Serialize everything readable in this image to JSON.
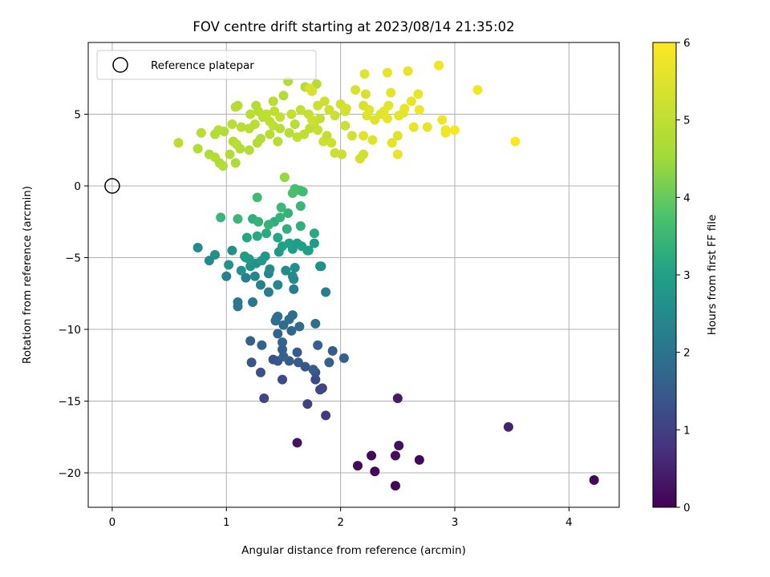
{
  "chart_data": {
    "type": "scatter",
    "title": "FOV centre drift starting at 2023/08/14 21:35:02",
    "xlabel": "Angular distance from reference (arcmin)",
    "ylabel": "Rotation from reference (arcmin)",
    "xlim": [
      -0.21,
      4.44
    ],
    "ylim": [
      -22.4,
      10.0
    ],
    "x_ticks": [
      0,
      1,
      2,
      3,
      4
    ],
    "y_ticks": [
      -20,
      -15,
      -10,
      -5,
      0,
      5
    ],
    "x_tick_labels": [
      "0",
      "1",
      "2",
      "3",
      "4"
    ],
    "y_tick_labels": [
      "−20",
      "−15",
      "−10",
      "−5",
      "0",
      "5"
    ],
    "grid": true,
    "colormap": "viridis",
    "colorbar": {
      "label": "Hours from first FF file",
      "range": [
        0,
        6
      ],
      "ticks": [
        0,
        1,
        2,
        3,
        4,
        5,
        6
      ],
      "tick_labels": [
        "0",
        "1",
        "2",
        "3",
        "4",
        "5",
        "6"
      ]
    },
    "legend": {
      "placement": "top-left",
      "entries": [
        {
          "label": "Reference platepar",
          "marker": "hollow-circle"
        }
      ]
    },
    "reference_point": {
      "x": 0,
      "y": 0
    },
    "series": [
      {
        "marker": "filled-circle",
        "points": [
          [
            2.48,
            -20.9,
            0.05
          ],
          [
            2.3,
            -19.9,
            0.08
          ],
          [
            2.15,
            -19.5,
            0.12
          ],
          [
            2.27,
            -18.8,
            0.15
          ],
          [
            2.48,
            -18.8,
            0.18
          ],
          [
            2.51,
            -18.1,
            0.2
          ],
          [
            2.69,
            -19.1,
            0.1
          ],
          [
            4.22,
            -20.5,
            0.1
          ],
          [
            3.47,
            -16.8,
            0.5
          ],
          [
            2.5,
            -14.8,
            0.4
          ],
          [
            1.62,
            -17.9,
            0.3
          ],
          [
            1.87,
            -16.0,
            0.9
          ],
          [
            1.71,
            -15.2,
            1.0
          ],
          [
            1.33,
            -14.8,
            1.1
          ],
          [
            1.49,
            -13.5,
            1.2
          ],
          [
            1.84,
            -14.1,
            1.0
          ],
          [
            1.82,
            -14.2,
            1.1
          ],
          [
            1.78,
            -13.5,
            1.2
          ],
          [
            1.78,
            -13.0,
            1.3
          ],
          [
            1.3,
            -13.0,
            1.3
          ],
          [
            1.22,
            -12.3,
            1.4
          ],
          [
            1.41,
            -12.1,
            1.3
          ],
          [
            1.45,
            -12.2,
            1.4
          ],
          [
            1.55,
            -12.2,
            1.5
          ],
          [
            1.63,
            -12.3,
            1.5
          ],
          [
            1.69,
            -12.6,
            1.4
          ],
          [
            1.76,
            -12.8,
            1.5
          ],
          [
            1.9,
            -12.3,
            1.6
          ],
          [
            1.93,
            -11.5,
            1.5
          ],
          [
            2.03,
            -12.0,
            1.6
          ],
          [
            1.8,
            -11.1,
            1.6
          ],
          [
            1.62,
            -11.6,
            1.5
          ],
          [
            1.5,
            -11.9,
            1.6
          ],
          [
            1.49,
            -11.4,
            1.6
          ],
          [
            1.49,
            -10.9,
            1.7
          ],
          [
            1.31,
            -11.1,
            1.7
          ],
          [
            1.21,
            -10.8,
            1.6
          ],
          [
            1.45,
            -10.3,
            1.7
          ],
          [
            1.57,
            -10.1,
            1.7
          ],
          [
            1.64,
            -9.8,
            1.8
          ],
          [
            1.5,
            -9.7,
            1.8
          ],
          [
            1.43,
            -9.4,
            1.8
          ],
          [
            1.55,
            -9.3,
            1.9
          ],
          [
            1.45,
            -9.1,
            1.9
          ],
          [
            1.44,
            -9.2,
            1.9
          ],
          [
            1.58,
            -9.0,
            1.9
          ],
          [
            1.78,
            -9.6,
            1.9
          ],
          [
            1.1,
            -8.4,
            2.1
          ],
          [
            1.1,
            -8.1,
            2.1
          ],
          [
            1.23,
            -8.1,
            2.1
          ],
          [
            1.37,
            -7.4,
            2.2
          ],
          [
            1.59,
            -7.2,
            2.2
          ],
          [
            1.87,
            -7.4,
            2.2
          ],
          [
            1.45,
            -6.9,
            2.4
          ],
          [
            1.3,
            -6.9,
            2.3
          ],
          [
            1.0,
            -6.3,
            2.3
          ],
          [
            1.17,
            -6.4,
            2.3
          ],
          [
            1.25,
            -6.3,
            2.4
          ],
          [
            1.37,
            -6.1,
            2.4
          ],
          [
            1.38,
            -5.8,
            2.5
          ],
          [
            1.52,
            -5.9,
            2.5
          ],
          [
            1.59,
            -6.5,
            2.5
          ],
          [
            1.58,
            -6.3,
            2.5
          ],
          [
            1.6,
            -5.7,
            2.6
          ],
          [
            1.82,
            -5.6,
            2.6
          ],
          [
            1.83,
            -5.6,
            2.6
          ],
          [
            1.02,
            -5.5,
            2.7
          ],
          [
            1.13,
            -5.9,
            2.7
          ],
          [
            1.21,
            -5.6,
            2.7
          ],
          [
            1.26,
            -5.4,
            2.7
          ],
          [
            1.2,
            -5.1,
            2.8
          ],
          [
            1.31,
            -5.2,
            2.8
          ],
          [
            1.34,
            -4.9,
            2.8
          ],
          [
            1.46,
            -4.6,
            2.8
          ],
          [
            1.58,
            -4.4,
            2.9
          ],
          [
            1.71,
            -4.5,
            2.9
          ],
          [
            1.62,
            -4.0,
            2.9
          ],
          [
            1.77,
            -4.0,
            2.9
          ],
          [
            1.49,
            -4.2,
            3.0
          ],
          [
            1.55,
            -4.0,
            3.0
          ],
          [
            1.66,
            -4.2,
            3.0
          ],
          [
            1.72,
            -4.5,
            3.0
          ],
          [
            1.16,
            -4.9,
            2.9
          ],
          [
            1.17,
            -5.0,
            2.9
          ],
          [
            0.75,
            -4.3,
            2.5
          ],
          [
            0.85,
            -5.2,
            2.5
          ],
          [
            0.9,
            -4.8,
            2.6
          ],
          [
            1.05,
            -4.5,
            2.6
          ],
          [
            1.18,
            -3.6,
            3.1
          ],
          [
            1.27,
            -3.5,
            3.2
          ],
          [
            1.35,
            -3.3,
            3.2
          ],
          [
            1.45,
            -3.6,
            3.1
          ],
          [
            1.53,
            -3.0,
            3.3
          ],
          [
            1.65,
            -2.8,
            3.3
          ],
          [
            1.77,
            -3.3,
            3.2
          ],
          [
            1.42,
            -2.5,
            3.3
          ],
          [
            1.47,
            -2.2,
            3.4
          ],
          [
            1.54,
            -1.9,
            3.4
          ],
          [
            1.48,
            -1.5,
            3.5
          ],
          [
            1.65,
            -1.4,
            3.5
          ],
          [
            1.23,
            -2.3,
            3.3
          ],
          [
            1.28,
            -2.5,
            3.4
          ],
          [
            1.37,
            -2.7,
            3.4
          ],
          [
            0.95,
            -2.2,
            3.5
          ],
          [
            1.1,
            -2.3,
            3.5
          ],
          [
            1.27,
            -0.8,
            3.6
          ],
          [
            1.58,
            -0.5,
            3.7
          ],
          [
            1.6,
            -0.2,
            3.7
          ],
          [
            1.64,
            -0.3,
            3.7
          ],
          [
            1.67,
            -0.4,
            3.6
          ],
          [
            1.51,
            0.6,
            4.4
          ],
          [
            0.58,
            3.0,
            4.9
          ],
          [
            0.78,
            3.7,
            4.9
          ],
          [
            0.93,
            3.9,
            4.9
          ],
          [
            0.75,
            2.6,
            4.8
          ],
          [
            0.85,
            2.2,
            4.7
          ],
          [
            0.9,
            2.0,
            4.8
          ],
          [
            0.94,
            1.6,
            4.7
          ],
          [
            0.97,
            1.4,
            4.8
          ],
          [
            1.03,
            2.2,
            4.8
          ],
          [
            1.08,
            1.6,
            4.7
          ],
          [
            0.9,
            3.6,
            4.8
          ],
          [
            0.98,
            3.8,
            4.8
          ],
          [
            1.06,
            3.1,
            4.8
          ],
          [
            1.09,
            2.9,
            4.9
          ],
          [
            1.12,
            2.6,
            4.8
          ],
          [
            1.2,
            2.5,
            4.8
          ],
          [
            1.27,
            3.0,
            4.8
          ],
          [
            1.3,
            3.3,
            4.8
          ],
          [
            1.38,
            3.6,
            4.9
          ],
          [
            1.45,
            3.1,
            4.9
          ],
          [
            1.05,
            4.3,
            4.9
          ],
          [
            1.13,
            4.1,
            4.9
          ],
          [
            1.2,
            4.0,
            4.9
          ],
          [
            1.25,
            4.3,
            4.9
          ],
          [
            1.21,
            5.0,
            4.9
          ],
          [
            1.28,
            5.2,
            4.9
          ],
          [
            1.32,
            4.8,
            4.9
          ],
          [
            1.38,
            4.5,
            5.0
          ],
          [
            1.41,
            4.2,
            5.0
          ],
          [
            1.08,
            5.5,
            4.8
          ],
          [
            1.1,
            5.6,
            4.8
          ],
          [
            1.26,
            5.6,
            4.8
          ],
          [
            1.41,
            5.9,
            4.9
          ],
          [
            1.5,
            6.3,
            4.8
          ],
          [
            1.54,
            7.3,
            4.8
          ],
          [
            1.69,
            6.9,
            4.8
          ],
          [
            1.79,
            7.1,
            4.8
          ],
          [
            1.47,
            4.0,
            4.9
          ],
          [
            1.55,
            3.7,
            4.9
          ],
          [
            1.6,
            4.3,
            4.9
          ],
          [
            1.62,
            3.4,
            5.0
          ],
          [
            1.68,
            3.6,
            5.0
          ],
          [
            1.73,
            4.0,
            5.0
          ],
          [
            1.77,
            4.4,
            5.1
          ],
          [
            1.8,
            3.9,
            5.1
          ],
          [
            1.82,
            4.7,
            5.1
          ],
          [
            1.85,
            3.1,
            5.2
          ],
          [
            1.88,
            3.5,
            5.1
          ],
          [
            1.92,
            3.0,
            5.2
          ],
          [
            1.95,
            2.3,
            5.2
          ],
          [
            2.01,
            2.2,
            5.2
          ],
          [
            2.04,
            4.2,
            5.2
          ],
          [
            2.1,
            3.5,
            5.3
          ],
          [
            2.17,
            1.9,
            5.3
          ],
          [
            1.35,
            5.0,
            5.0
          ],
          [
            1.42,
            5.2,
            5.0
          ],
          [
            1.47,
            4.8,
            5.1
          ],
          [
            1.57,
            5.0,
            5.1
          ],
          [
            1.65,
            5.3,
            5.1
          ],
          [
            1.72,
            5.0,
            5.1
          ],
          [
            1.75,
            4.6,
            5.2
          ],
          [
            1.8,
            5.6,
            5.2
          ],
          [
            1.86,
            5.9,
            5.2
          ],
          [
            1.9,
            5.3,
            5.2
          ],
          [
            1.95,
            4.9,
            5.2
          ],
          [
            2.0,
            5.7,
            5.3
          ],
          [
            2.04,
            5.2,
            5.3
          ],
          [
            2.05,
            5.4,
            5.3
          ],
          [
            1.75,
            6.6,
            5.4
          ],
          [
            1.73,
            6.8,
            5.4
          ],
          [
            2.13,
            6.7,
            5.4
          ],
          [
            2.2,
            5.6,
            5.4
          ],
          [
            2.25,
            5.3,
            5.5
          ],
          [
            2.23,
            4.9,
            5.5
          ],
          [
            2.28,
            3.2,
            5.5
          ],
          [
            2.2,
            3.5,
            5.5
          ],
          [
            2.2,
            2.2,
            5.3
          ],
          [
            2.21,
            7.8,
            5.5
          ],
          [
            2.22,
            6.4,
            5.4
          ],
          [
            2.3,
            4.6,
            5.5
          ],
          [
            2.35,
            5.0,
            5.5
          ],
          [
            2.38,
            5.2,
            5.6
          ],
          [
            2.42,
            5.6,
            5.6
          ],
          [
            2.44,
            6.5,
            5.6
          ],
          [
            2.41,
            4.7,
            5.6
          ],
          [
            2.45,
            3.0,
            5.6
          ],
          [
            2.5,
            3.5,
            5.5
          ],
          [
            2.51,
            4.9,
            5.6
          ],
          [
            2.55,
            5.1,
            5.6
          ],
          [
            2.56,
            5.4,
            5.7
          ],
          [
            2.5,
            2.2,
            5.7
          ],
          [
            2.41,
            7.9,
            5.6
          ],
          [
            2.59,
            8.0,
            5.7
          ],
          [
            2.62,
            5.9,
            5.7
          ],
          [
            2.64,
            4.1,
            5.7
          ],
          [
            2.69,
            5.3,
            5.8
          ],
          [
            2.68,
            6.4,
            5.7
          ],
          [
            2.76,
            4.1,
            5.7
          ],
          [
            2.86,
            8.4,
            5.8
          ],
          [
            2.89,
            4.6,
            5.8
          ],
          [
            2.92,
            3.9,
            5.8
          ],
          [
            2.92,
            3.7,
            5.8
          ],
          [
            3.0,
            3.9,
            5.9
          ],
          [
            3.2,
            6.7,
            5.8
          ],
          [
            3.53,
            3.1,
            6.0
          ]
        ]
      }
    ]
  }
}
